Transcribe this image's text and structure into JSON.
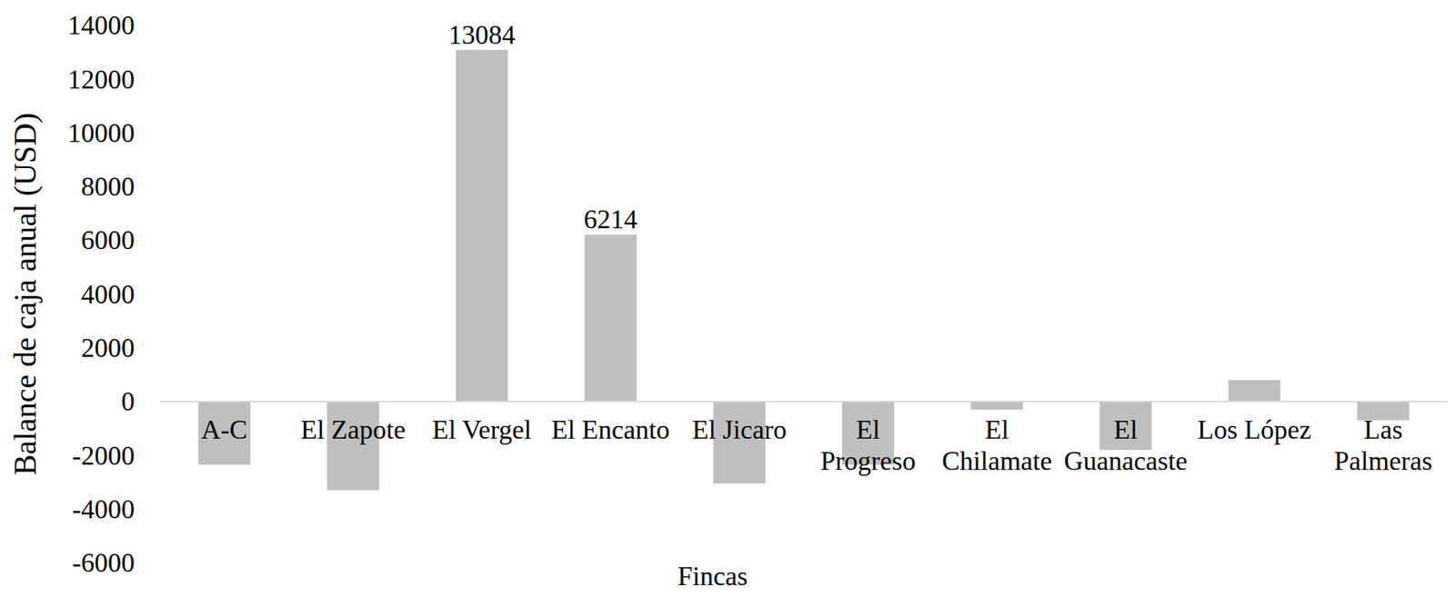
{
  "chart_data": {
    "type": "bar",
    "y_label": "Balance de caja anual (USD)",
    "x_label": "Fincas",
    "categories": [
      "A-C",
      "El Zapote",
      "El Vergel",
      "El Encanto",
      "El Jicaro",
      "El Progreso",
      "El Chilamate",
      "El Guanacaste",
      "Los López",
      "Las Palmeras"
    ],
    "values": [
      -2350,
      -3300,
      13084,
      6214,
      -3050,
      -2350,
      -300,
      -1800,
      800,
      -700
    ],
    "value_labels": [
      null,
      null,
      "13084",
      "6214",
      null,
      null,
      null,
      null,
      null,
      null
    ],
    "data_labels": true,
    "color": "#bfbfbf",
    "ylim": [
      -6000,
      14000
    ],
    "yticks": [
      -6000,
      -4000,
      -2000,
      0,
      2000,
      4000,
      6000,
      8000,
      10000,
      12000,
      14000
    ],
    "grid": false
  }
}
